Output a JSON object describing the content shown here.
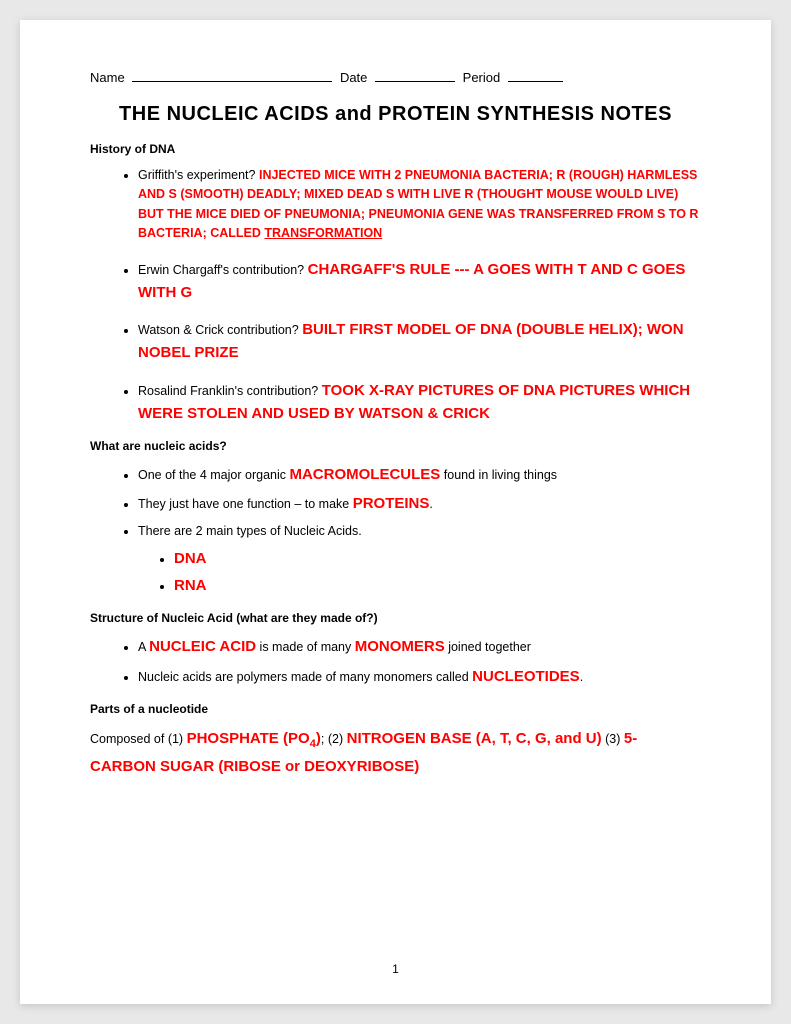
{
  "header": {
    "name_label": "Name",
    "date_label": "Date",
    "period_label": "Period"
  },
  "title": "THE NUCLEIC ACIDS and PROTEIN SYNTHESIS NOTES",
  "sections": {
    "history": {
      "heading": "History of DNA",
      "items": {
        "griffith": {
          "q": "Griffith's experiment?",
          "a_part1": "INJECTED MICE WITH 2 PNEUMONIA BACTERIA; R (ROUGH) HARMLESS AND S (SMOOTH) DEADLY; MIXED DEAD S WITH LIVE R (THOUGHT MOUSE WOULD LIVE) BUT THE MICE DIED OF PNEUMONIA; PNEUMONIA GENE WAS TRANSFERRED FROM S TO R BACTERIA; CALLED ",
          "a_underlined": "TRANSFORMATION"
        },
        "chargaff": {
          "q": "Erwin Chargaff's contribution?",
          "a": "CHARGAFF'S RULE --- A GOES WITH T AND C GOES WITH G"
        },
        "watson": {
          "q": "Watson & Crick contribution?",
          "a": "BUILT FIRST MODEL OF DNA (DOUBLE HELIX); WON NOBEL PRIZE"
        },
        "franklin": {
          "q": "Rosalind Franklin's contribution?",
          "a": "TOOK X-RAY PICTURES OF DNA PICTURES WHICH WERE STOLEN AND USED BY WATSON & CRICK"
        }
      }
    },
    "what_are": {
      "heading": "What are nucleic acids?",
      "li1_pre": "One of the 4 major organic ",
      "li1_red": "MACROMOLECULES",
      "li1_post": " found in living things",
      "li2_pre": "They just have one function – to make ",
      "li2_red": "PROTEINS",
      "li2_post": ".",
      "li3": "There are 2 main types of Nucleic Acids.",
      "sub1": "DNA",
      "sub2": "RNA"
    },
    "structure": {
      "heading": "Structure of Nucleic Acid (what are they made of?)",
      "li1_pre": "A ",
      "li1_red1": "NUCLEIC ACID",
      "li1_mid": " is made of many ",
      "li1_red2": "MONOMERS",
      "li1_post": " joined together",
      "li2_pre": "Nucleic acids are polymers made of many monomers called ",
      "li2_red": "NUCLEOTIDES",
      "li2_post": "."
    },
    "parts": {
      "heading": "Parts of a nucleotide",
      "pre1": "Composed of (1) ",
      "red1a": "PHOSPHATE (PO",
      "red1sub": "4",
      "red1b": ")",
      "sep1": "; (2) ",
      "red2": "NITROGEN BASE (A, T, C, G, and U)",
      "sep2": " (3) ",
      "red3": "5-CARBON SUGAR (RIBOSE or DEOXYRIBOSE)"
    }
  },
  "page_number": "1",
  "colors": {
    "red": "#ff0000",
    "text": "#000000",
    "bg": "#ffffff",
    "page_bg": "#e8e8e8"
  }
}
